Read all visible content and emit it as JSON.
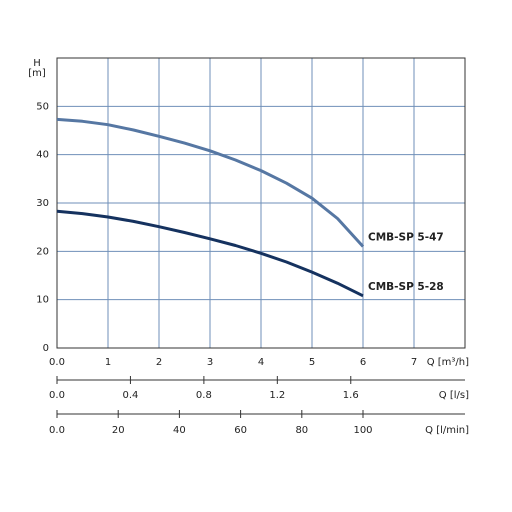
{
  "chart_data": {
    "type": "line",
    "ylabel_symbol": "H",
    "ylabel_unit": "[m]",
    "xlabel": "Q [m³/h]",
    "x2label": "Q [l/s]",
    "x3label": "Q [l/min]",
    "x": [
      0,
      0.5,
      1,
      1.5,
      2,
      2.5,
      3,
      3.5,
      4,
      4.5,
      5,
      5.5,
      6
    ],
    "series": [
      {
        "name": "CMB-SP 5-47",
        "color": "#5677a3",
        "values": [
          47.3,
          46.9,
          46.2,
          45.1,
          43.8,
          42.4,
          40.8,
          38.9,
          36.7,
          34.1,
          31.0,
          26.8,
          21.0
        ]
      },
      {
        "name": "CMB-SP 5-28",
        "color": "#15325f",
        "values": [
          28.3,
          27.8,
          27.1,
          26.2,
          25.1,
          23.9,
          22.6,
          21.2,
          19.6,
          17.8,
          15.7,
          13.4,
          10.8
        ]
      }
    ],
    "xlim": [
      0,
      8
    ],
    "xticks": [
      {
        "value": 0,
        "label": "0.0"
      },
      1,
      2,
      3,
      4,
      5,
      6,
      7
    ],
    "ylim": [
      0,
      60
    ],
    "yticks": [
      0,
      10,
      20,
      30,
      40,
      50
    ],
    "x2lim": [
      0,
      2.2222
    ],
    "x2ticks": [
      {
        "value": 0,
        "label": "0.0"
      },
      0.4,
      0.8,
      1.2,
      1.6
    ],
    "x3lim": [
      0,
      133.33
    ],
    "x3ticks": [
      {
        "value": 0,
        "label": "0.0"
      },
      20,
      40,
      60,
      80,
      100
    ],
    "grid": true,
    "grid_color": "#6f8fb8"
  }
}
